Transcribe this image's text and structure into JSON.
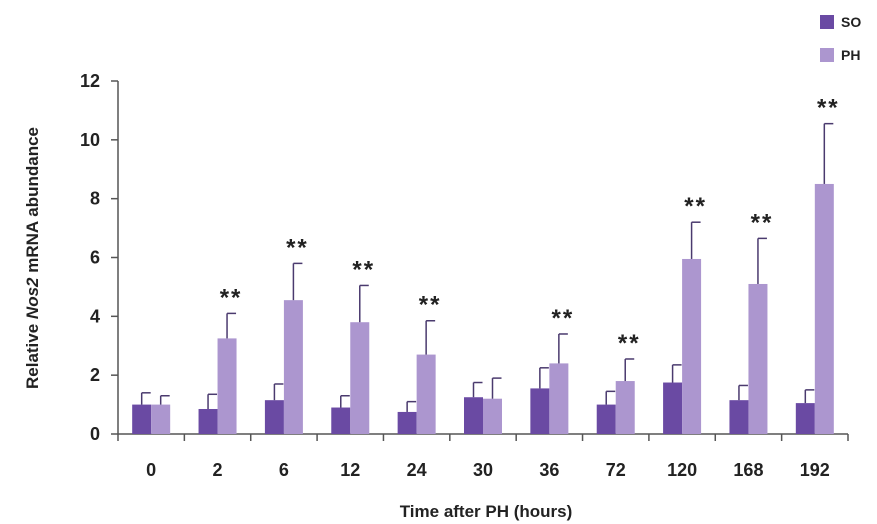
{
  "chart_data": {
    "type": "bar",
    "xlabel": "Time after PH (hours)",
    "ylabel_prefix": "Relative ",
    "ylabel_gene": "Nos2",
    "ylabel_suffix": " mRNA abundance",
    "categories": [
      "0",
      "2",
      "6",
      "12",
      "24",
      "30",
      "36",
      "72",
      "120",
      "168",
      "192"
    ],
    "ylim": [
      0,
      12
    ],
    "yticks": [
      0,
      2,
      4,
      6,
      8,
      10,
      12
    ],
    "legend_position": "top-right",
    "series": [
      {
        "name": "SO",
        "color": "#6a4aa3",
        "values": [
          1.0,
          0.85,
          1.15,
          0.9,
          0.75,
          1.25,
          1.55,
          1.0,
          1.75,
          1.15,
          1.05
        ],
        "errors": [
          0.4,
          0.5,
          0.55,
          0.4,
          0.35,
          0.5,
          0.7,
          0.45,
          0.6,
          0.5,
          0.45
        ]
      },
      {
        "name": "PH",
        "color": "#ac96cf",
        "values": [
          1.0,
          3.25,
          4.55,
          3.8,
          2.7,
          1.2,
          2.4,
          1.8,
          5.95,
          5.1,
          8.5
        ],
        "errors": [
          0.3,
          0.85,
          1.25,
          1.25,
          1.15,
          0.7,
          1.0,
          0.75,
          1.25,
          1.55,
          2.05
        ]
      }
    ],
    "significance_label": "**",
    "significant": [
      false,
      true,
      true,
      true,
      true,
      false,
      true,
      true,
      true,
      true,
      true
    ]
  }
}
